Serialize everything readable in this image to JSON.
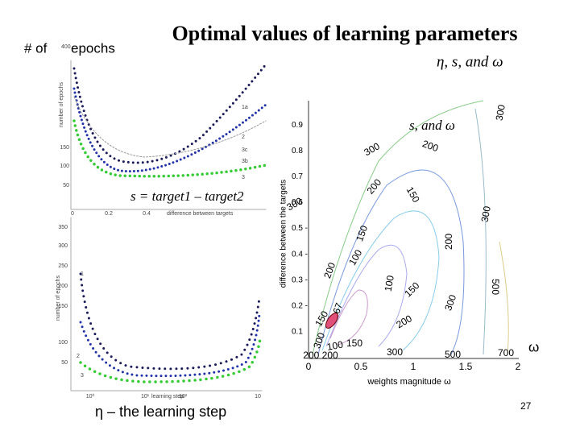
{
  "slide": {
    "title": "Optimal values of learning parameters",
    "top_left_label": "# of",
    "top_left_small": "400",
    "top_left_label2": "epochs",
    "subtitle_right": "η, s, and ω",
    "s_label": "s",
    "s_definition": "s = target1 – target2",
    "eta_definition": "η – the learning step",
    "page_number": "27"
  },
  "top_chart": {
    "ylabel": "number of epochs",
    "yticks": [
      "150",
      "100",
      "50"
    ],
    "xticks": [
      "0",
      "0.2",
      "0.4"
    ],
    "xlabel": "difference between targets",
    "legend": [
      "1a",
      "2",
      "3c",
      "3b",
      "3"
    ]
  },
  "bottom_chart": {
    "ylabel": "number of epochs",
    "yticks": [
      "350",
      "300",
      "250",
      "200",
      "150",
      "100",
      "50"
    ],
    "xticks": [
      "10⁰",
      "10¹",
      "10²",
      "10"
    ],
    "xlabel": "learning step",
    "legend": [
      "1",
      "2",
      "3"
    ]
  },
  "contour_chart": {
    "heading": "s, and ω",
    "ylabel": "difference between the targets",
    "xlabel": "weights magnitude ω",
    "yticks": [
      "0.1",
      "0.2 -",
      "0.3 -",
      "0.4 -",
      "0.5 -",
      "0.6",
      "0.7",
      "0.8",
      "0.9"
    ],
    "xticks": [
      "0",
      "0.5",
      "1",
      "1.5",
      "2"
    ],
    "omega": "ω",
    "contour_labels": [
      "300",
      "300",
      "200",
      "200",
      "150",
      "300",
      "300",
      "150",
      "200",
      "100",
      "200",
      "100",
      "150",
      "500",
      "300",
      "67",
      "150",
      "200",
      "300",
      "100",
      "150",
      "300",
      "500",
      "700",
      "200 200"
    ]
  }
}
